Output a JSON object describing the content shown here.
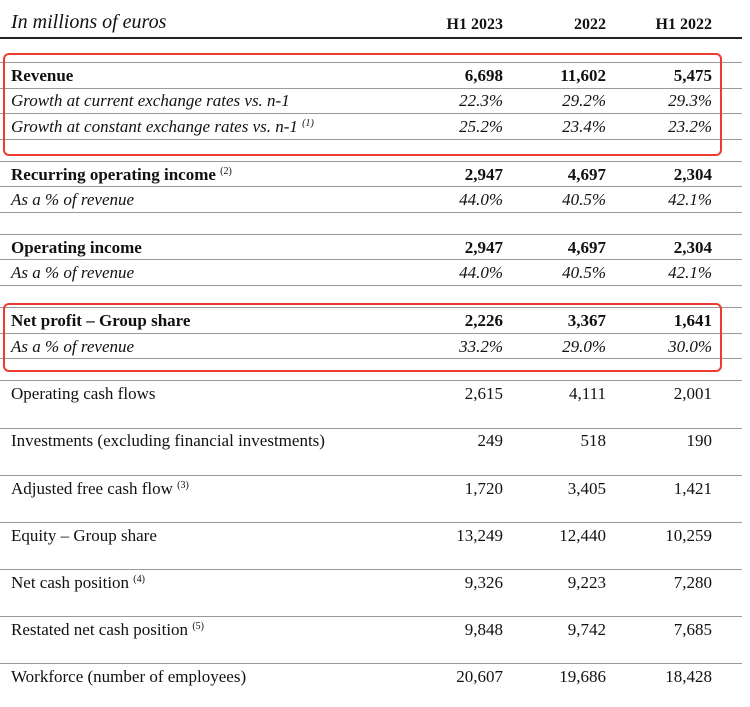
{
  "header": {
    "title": "In millions of euros",
    "columns": [
      "H1 2023",
      "2022",
      "H1 2022"
    ]
  },
  "rows": [
    {
      "label": "Revenue",
      "note": "",
      "values": [
        "6,698",
        "11,602",
        "5,475"
      ]
    },
    {
      "label": "Growth at current exchange rates vs. n-1",
      "note": "",
      "values": [
        "22.3%",
        "29.2%",
        "29.3%"
      ]
    },
    {
      "label": "Growth at constant exchange rates vs. n-1",
      "note": "(1)",
      "values": [
        "25.2%",
        "23.4%",
        "23.2%"
      ]
    },
    {
      "label": "Recurring operating income",
      "note": "(2)",
      "values": [
        "2,947",
        "4,697",
        "2,304"
      ]
    },
    {
      "label": "As a % of revenue",
      "note": "",
      "values": [
        "44.0%",
        "40.5%",
        "42.1%"
      ]
    },
    {
      "label": "Operating income",
      "note": "",
      "values": [
        "2,947",
        "4,697",
        "2,304"
      ]
    },
    {
      "label": "As a % of revenue",
      "note": "",
      "values": [
        "44.0%",
        "40.5%",
        "42.1%"
      ]
    },
    {
      "label": "Net profit – Group share",
      "note": "",
      "values": [
        "2,226",
        "3,367",
        "1,641"
      ]
    },
    {
      "label": "As a % of revenue",
      "note": "",
      "values": [
        "33.2%",
        "29.0%",
        "30.0%"
      ]
    },
    {
      "label": "Operating cash flows",
      "note": "",
      "values": [
        "2,615",
        "4,111",
        "2,001"
      ]
    },
    {
      "label": "Investments (excluding financial investments)",
      "note": "",
      "values": [
        "249",
        "518",
        "190"
      ]
    },
    {
      "label": "Adjusted free cash flow",
      "note": "(3)",
      "values": [
        "1,720",
        "3,405",
        "1,421"
      ]
    },
    {
      "label": "Equity – Group share",
      "note": "",
      "values": [
        "13,249",
        "12,440",
        "10,259"
      ]
    },
    {
      "label": "Net cash position",
      "note": "(4)",
      "values": [
        "9,326",
        "9,223",
        "7,280"
      ]
    },
    {
      "label": "Restated net cash position",
      "note": "(5)",
      "values": [
        "9,848",
        "9,742",
        "7,685"
      ]
    },
    {
      "label": "Workforce (number of employees)",
      "note": "",
      "values": [
        "20,607",
        "19,686",
        "18,428"
      ]
    }
  ]
}
